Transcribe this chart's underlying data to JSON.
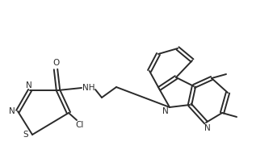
{
  "background_color": "#ffffff",
  "line_color": "#2a2a2a",
  "line_width": 1.4,
  "figsize": [
    3.38,
    1.91
  ],
  "dpi": 100,
  "xlim": [
    0,
    338
  ],
  "ylim": [
    0,
    191
  ]
}
